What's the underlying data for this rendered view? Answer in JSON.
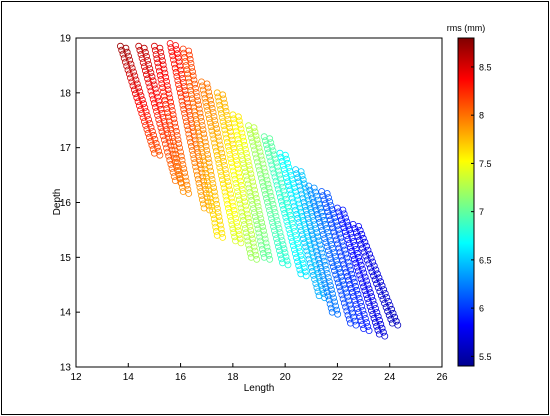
{
  "chart_data": {
    "type": "scatter",
    "title": "",
    "xlabel": "Length",
    "ylabel": "Depth",
    "xlim": [
      12,
      26
    ],
    "ylim": [
      13,
      19
    ],
    "xticks": [
      "12",
      "14",
      "16",
      "18",
      "20",
      "22",
      "24",
      "26"
    ],
    "yticks": [
      "13",
      "14",
      "15",
      "16",
      "17",
      "18",
      "19"
    ],
    "grid": false,
    "marker": "open-circle",
    "colorbar": {
      "label": "rms (mm)",
      "range": [
        5.4,
        8.8
      ],
      "ticks": [
        "5.5",
        "6",
        "6.5",
        "7",
        "7.5",
        "8",
        "8.5"
      ],
      "colormap": "jet"
    },
    "strips": [
      {
        "x0": 13.7,
        "y0": 18.85,
        "x1": 15.0,
        "y1": 16.9,
        "rms0": 8.7,
        "rms1": 8.1
      },
      {
        "x0": 14.4,
        "y0": 18.85,
        "x1": 15.8,
        "y1": 16.4,
        "rms0": 8.6,
        "rms1": 8.0
      },
      {
        "x0": 15.0,
        "y0": 18.85,
        "x1": 16.1,
        "y1": 16.2,
        "rms0": 8.5,
        "rms1": 7.9
      },
      {
        "x0": 15.6,
        "y0": 18.9,
        "x1": 16.9,
        "y1": 15.9,
        "rms0": 8.4,
        "rms1": 7.8
      },
      {
        "x0": 16.1,
        "y0": 18.8,
        "x1": 17.4,
        "y1": 15.4,
        "rms0": 8.2,
        "rms1": 7.6
      },
      {
        "x0": 16.8,
        "y0": 18.2,
        "x1": 18.1,
        "y1": 15.3,
        "rms0": 8.0,
        "rms1": 7.4
      },
      {
        "x0": 17.4,
        "y0": 18.0,
        "x1": 18.7,
        "y1": 15.0,
        "rms0": 7.8,
        "rms1": 7.2
      },
      {
        "x0": 18.0,
        "y0": 17.6,
        "x1": 19.2,
        "y1": 15.0,
        "rms0": 7.6,
        "rms1": 7.0
      },
      {
        "x0": 18.6,
        "y0": 17.4,
        "x1": 19.9,
        "y1": 14.9,
        "rms0": 7.3,
        "rms1": 6.8
      },
      {
        "x0": 19.2,
        "y0": 17.2,
        "x1": 20.6,
        "y1": 14.7,
        "rms0": 7.0,
        "rms1": 6.6
      },
      {
        "x0": 19.8,
        "y0": 16.9,
        "x1": 21.3,
        "y1": 14.3,
        "rms0": 6.7,
        "rms1": 6.4
      },
      {
        "x0": 20.4,
        "y0": 16.6,
        "x1": 21.8,
        "y1": 14.0,
        "rms0": 6.5,
        "rms1": 6.2
      },
      {
        "x0": 20.9,
        "y0": 16.3,
        "x1": 22.5,
        "y1": 13.8,
        "rms0": 6.3,
        "rms1": 6.0
      },
      {
        "x0": 21.4,
        "y0": 16.2,
        "x1": 23.0,
        "y1": 13.7,
        "rms0": 6.1,
        "rms1": 5.9
      },
      {
        "x0": 22.0,
        "y0": 15.9,
        "x1": 23.6,
        "y1": 13.6,
        "rms0": 5.9,
        "rms1": 5.7
      },
      {
        "x0": 22.6,
        "y0": 15.6,
        "x1": 24.1,
        "y1": 13.8,
        "rms0": 5.8,
        "rms1": 5.6
      }
    ]
  }
}
